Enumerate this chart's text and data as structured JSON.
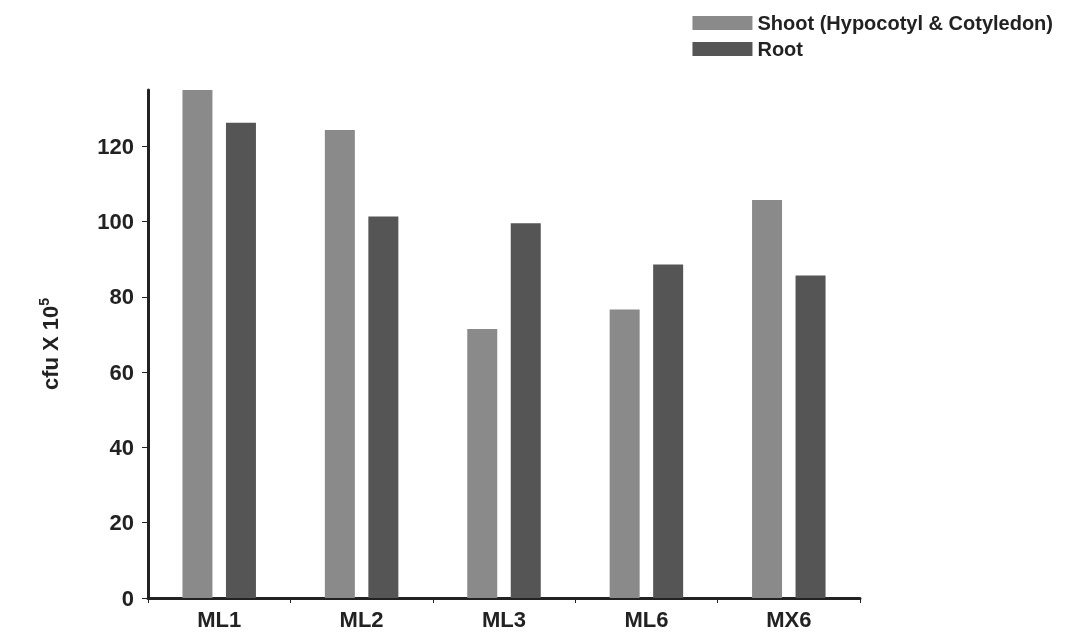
{
  "chart_data": {
    "type": "bar",
    "ylabel": "cfu X 10$^{5}$",
    "categories": [
      "ML1",
      "ML2",
      "ML3",
      "ML6",
      "MX6"
    ],
    "series": [
      {
        "name": "Shoot (Hypocotyl & Cotyledon)",
        "color": "#8a8a8a",
        "values": [
          135,
          124.4,
          71.5,
          76.7,
          105.8
        ]
      },
      {
        "name": "Root",
        "color": "#555555",
        "values": [
          126.3,
          101.4,
          99.6,
          88.6,
          85.7
        ]
      }
    ],
    "ylim": [
      0,
      135
    ],
    "yticks": [
      0,
      20,
      40,
      60,
      80,
      100,
      120
    ],
    "grid": false,
    "legend": "top right"
  }
}
